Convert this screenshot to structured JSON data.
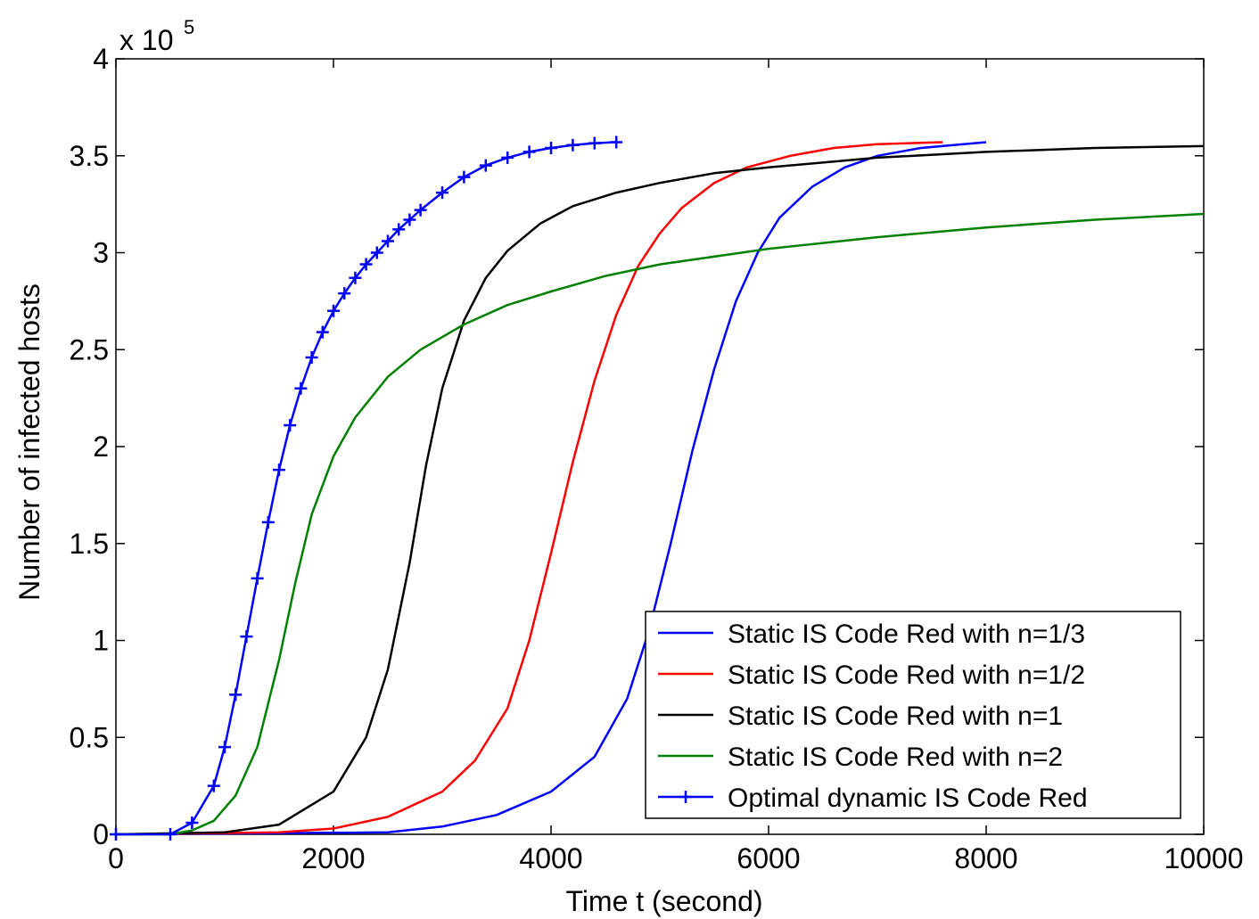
{
  "chart_data": {
    "type": "line",
    "title": "",
    "xlabel": "Time t (second)",
    "ylabel": "Number of infected hosts",
    "y_multiplier_base": "x 10",
    "y_multiplier_exp": "5",
    "xlim": [
      0,
      10000
    ],
    "ylim": [
      0,
      4
    ],
    "xticks": [
      0,
      2000,
      4000,
      6000,
      8000,
      10000
    ],
    "xtick_labels": [
      "0",
      "2000",
      "4000",
      "6000",
      "8000",
      "10000"
    ],
    "yticks": [
      0,
      0.5,
      1,
      1.5,
      2,
      2.5,
      3,
      3.5,
      4
    ],
    "ytick_labels": [
      "0",
      "0.5",
      "1",
      "1.5",
      "2",
      "2.5",
      "3",
      "3.5",
      "4"
    ],
    "grid": false,
    "legend_position": "bottom-right",
    "series": [
      {
        "name": "Static IS Code Red with n=1/3",
        "color": "#0000ff",
        "marker": "none",
        "x": [
          0,
          2500,
          3000,
          3500,
          4000,
          4400,
          4700,
          4900,
          5100,
          5300,
          5500,
          5700,
          5900,
          6100,
          6400,
          6700,
          7000,
          7400,
          8000
        ],
        "y": [
          0,
          0.01,
          0.04,
          0.1,
          0.22,
          0.4,
          0.7,
          1.05,
          1.5,
          1.98,
          2.4,
          2.75,
          3.0,
          3.18,
          3.34,
          3.44,
          3.5,
          3.54,
          3.57
        ]
      },
      {
        "name": "Static IS Code Red with n=1/2",
        "color": "#ff0000",
        "marker": "none",
        "x": [
          0,
          1500,
          2000,
          2500,
          3000,
          3300,
          3600,
          3800,
          4000,
          4200,
          4400,
          4600,
          4800,
          5000,
          5200,
          5500,
          5800,
          6200,
          6600,
          7000,
          7600
        ],
        "y": [
          0,
          0.01,
          0.03,
          0.09,
          0.22,
          0.38,
          0.65,
          1.0,
          1.45,
          1.92,
          2.34,
          2.68,
          2.93,
          3.1,
          3.23,
          3.36,
          3.44,
          3.5,
          3.54,
          3.56,
          3.57
        ]
      },
      {
        "name": "Static IS Code Red with n=1",
        "color": "#000000",
        "marker": "none",
        "x": [
          0,
          1000,
          1500,
          2000,
          2300,
          2500,
          2700,
          2850,
          3000,
          3200,
          3400,
          3600,
          3900,
          4200,
          4600,
          5000,
          5500,
          6000,
          7000,
          8000,
          9000,
          10000
        ],
        "y": [
          0,
          0.01,
          0.05,
          0.22,
          0.5,
          0.85,
          1.4,
          1.9,
          2.3,
          2.65,
          2.87,
          3.01,
          3.15,
          3.24,
          3.31,
          3.36,
          3.41,
          3.44,
          3.49,
          3.52,
          3.54,
          3.55
        ]
      },
      {
        "name": "Static IS Code Red with n=2",
        "color": "#008000",
        "marker": "none",
        "x": [
          0,
          500,
          700,
          900,
          1100,
          1300,
          1500,
          1650,
          1800,
          2000,
          2200,
          2500,
          2800,
          3200,
          3600,
          4000,
          4500,
          5000,
          6000,
          7000,
          8000,
          9000,
          10000
        ],
        "y": [
          0,
          0.0,
          0.02,
          0.07,
          0.2,
          0.45,
          0.9,
          1.3,
          1.65,
          1.95,
          2.15,
          2.36,
          2.5,
          2.63,
          2.73,
          2.8,
          2.88,
          2.94,
          3.02,
          3.08,
          3.13,
          3.17,
          3.2
        ]
      },
      {
        "name": "Optimal dynamic IS Code Red",
        "color": "#0000ff",
        "marker": "+",
        "x": [
          0,
          500,
          700,
          900,
          1000,
          1100,
          1200,
          1300,
          1400,
          1500,
          1600,
          1700,
          1800,
          1900,
          2000,
          2100,
          2200,
          2300,
          2400,
          2500,
          2600,
          2700,
          2800,
          3000,
          3200,
          3400,
          3600,
          3800,
          4000,
          4200,
          4400,
          4600
        ],
        "y": [
          0,
          0.0,
          0.06,
          0.25,
          0.45,
          0.72,
          1.02,
          1.32,
          1.61,
          1.88,
          2.11,
          2.3,
          2.46,
          2.59,
          2.7,
          2.79,
          2.87,
          2.94,
          3.0,
          3.06,
          3.12,
          3.17,
          3.22,
          3.31,
          3.39,
          3.45,
          3.49,
          3.52,
          3.54,
          3.555,
          3.565,
          3.57
        ]
      }
    ]
  }
}
